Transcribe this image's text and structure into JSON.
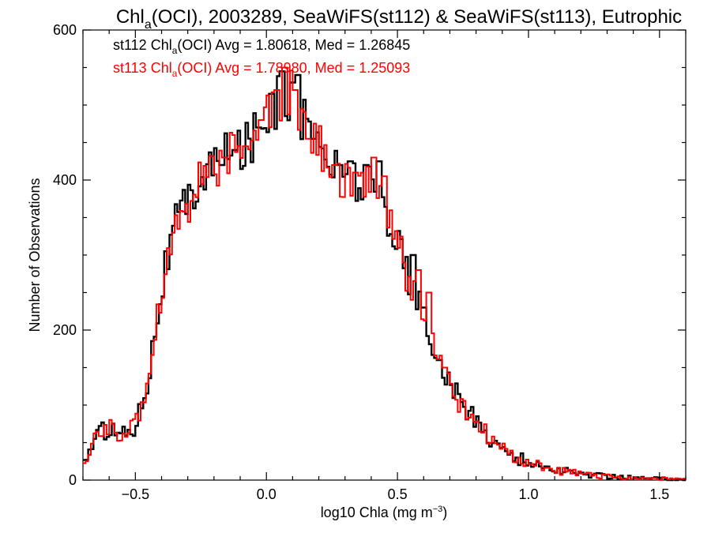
{
  "chart_data": {
    "type": "line",
    "title_parts": {
      "a": "Chl",
      "sub": "a",
      "b": "(OCI), 2003289, SeaWiFS(st112) & SeaWiFS(st113), Eutrophic"
    },
    "xlabel_parts": {
      "a": "log10 Chla (mg m",
      "sup": "−3",
      "b": ")"
    },
    "ylabel": "Number of Observations",
    "xlim": [
      -0.7,
      1.6
    ],
    "ylim": [
      0,
      600
    ],
    "x_ticks": [
      -0.5,
      0.0,
      0.5,
      1.0,
      1.5
    ],
    "x_tick_labels": [
      "−0.5",
      "0.0",
      "0.5",
      "1.0",
      "1.5"
    ],
    "y_ticks": [
      0,
      200,
      400,
      600
    ],
    "y_tick_labels": [
      "0",
      "200",
      "400",
      "600"
    ],
    "grid": false,
    "legend_position": "top-left",
    "bin_width": 0.01,
    "anchor_x": [
      -0.7,
      -0.65,
      -0.6,
      -0.55,
      -0.5,
      -0.45,
      -0.4,
      -0.35,
      -0.3,
      -0.25,
      -0.2,
      -0.15,
      -0.1,
      -0.05,
      0.0,
      0.05,
      0.1,
      0.15,
      0.2,
      0.25,
      0.3,
      0.35,
      0.4,
      0.45,
      0.5,
      0.55,
      0.6,
      0.65,
      0.7,
      0.75,
      0.8,
      0.85,
      0.9,
      0.95,
      1.0,
      1.05,
      1.1,
      1.2,
      1.3,
      1.4,
      1.5,
      1.6
    ],
    "series": [
      {
        "key": "st112",
        "color": "#000000",
        "legend": {
          "a": "st112 Chl",
          "sub": "a",
          "b": "(OCI) Avg = 1.80618, Med = 1.26845"
        },
        "anchor_y": [
          20,
          60,
          70,
          62,
          72,
          140,
          260,
          340,
          370,
          405,
          425,
          430,
          440,
          460,
          495,
          505,
          520,
          470,
          450,
          420,
          410,
          400,
          390,
          370,
          320,
          265,
          215,
          170,
          130,
          100,
          78,
          58,
          42,
          30,
          25,
          18,
          14,
          8,
          5,
          3,
          2,
          1
        ],
        "spikes": [
          [
            -0.17,
            420
          ],
          [
            -0.12,
            440
          ],
          [
            -0.03,
            470
          ],
          [
            0.02,
            515
          ],
          [
            0.06,
            545
          ],
          [
            0.1,
            530
          ],
          [
            0.12,
            540
          ],
          [
            0.18,
            455
          ],
          [
            0.28,
            420
          ],
          [
            0.32,
            425
          ],
          [
            0.38,
            420
          ],
          [
            0.43,
            425
          ],
          [
            0.56,
            300
          ],
          [
            0.6,
            230
          ],
          [
            0.66,
            160
          ]
        ]
      },
      {
        "key": "st113",
        "color": "#ff0000",
        "legend": {
          "a": "st113 Chl",
          "sub": "a",
          "b": "(OCI) Avg = 1.78980, Med = 1.25093"
        },
        "anchor_y": [
          18,
          58,
          72,
          60,
          70,
          138,
          255,
          335,
          368,
          402,
          422,
          428,
          438,
          458,
          490,
          502,
          515,
          468,
          448,
          418,
          405,
          398,
          388,
          368,
          318,
          262,
          212,
          168,
          128,
          98,
          76,
          56,
          40,
          29,
          24,
          17,
          13,
          8,
          5,
          3,
          2,
          1
        ],
        "spikes": [
          [
            -0.16,
            430
          ],
          [
            -0.08,
            445
          ],
          [
            -0.02,
            480
          ],
          [
            0.04,
            520
          ],
          [
            0.07,
            550
          ],
          [
            0.11,
            520
          ],
          [
            0.16,
            455
          ],
          [
            0.26,
            420
          ],
          [
            0.34,
            410
          ],
          [
            0.41,
            430
          ],
          [
            0.45,
            405
          ],
          [
            0.58,
            280
          ],
          [
            0.62,
            250
          ],
          [
            0.68,
            150
          ]
        ]
      }
    ]
  }
}
